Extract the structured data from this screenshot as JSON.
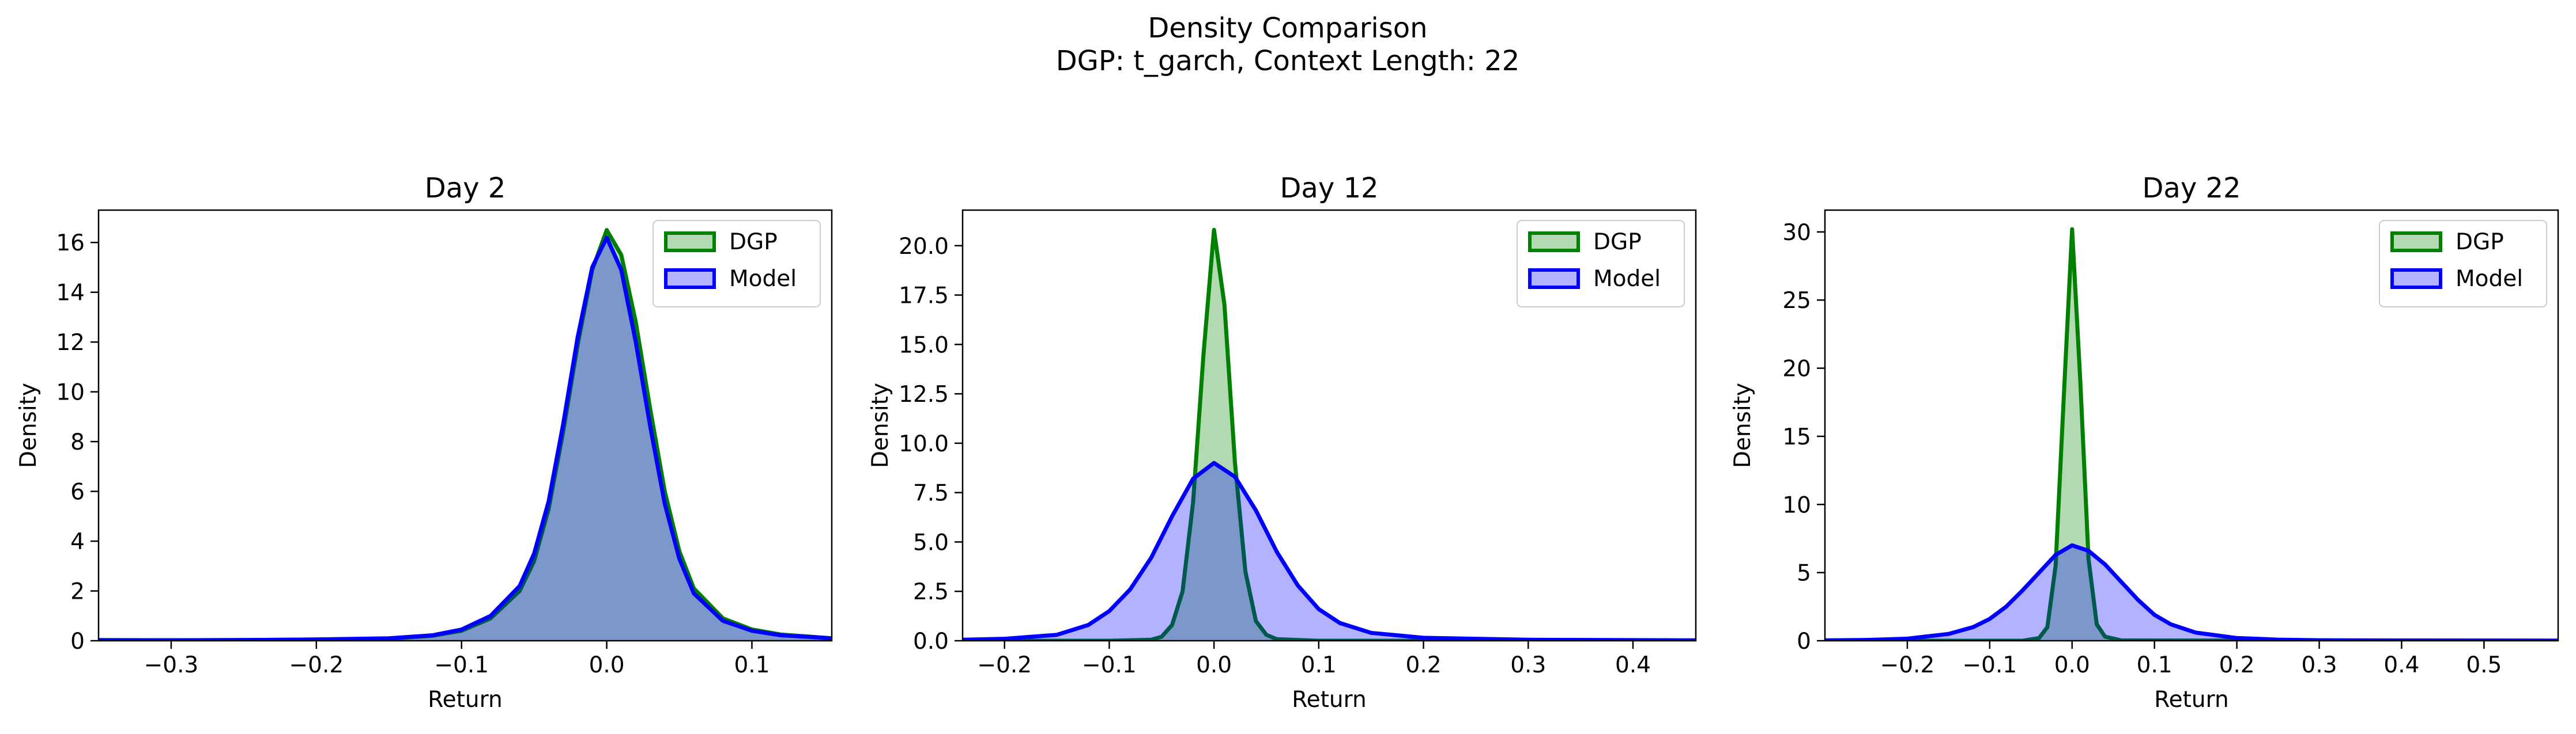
{
  "figure": {
    "title_line1": "Density Comparison",
    "title_line2": "DGP: t_garch, Context Length: 22"
  },
  "colors": {
    "dgp_line": "#008000",
    "dgp_fill": "#008000",
    "model_line": "#0000ff",
    "model_fill": "#0000ff"
  },
  "chart_data": [
    {
      "type": "area",
      "title": "Day 2",
      "xlabel": "Return",
      "ylabel": "Density",
      "xlim": [
        -0.35,
        0.155
      ],
      "ylim": [
        0,
        17.3
      ],
      "xticks": [
        -0.3,
        -0.2,
        -0.1,
        0.0,
        0.1
      ],
      "xtick_labels": [
        "−0.3",
        "−0.2",
        "−0.1",
        "0.0",
        "0.1"
      ],
      "yticks": [
        0,
        2,
        4,
        6,
        8,
        10,
        12,
        14,
        16
      ],
      "ytick_labels": [
        "0",
        "2",
        "4",
        "6",
        "8",
        "10",
        "12",
        "14",
        "16"
      ],
      "legend": {
        "position": "top-right",
        "entries": [
          "DGP",
          "Model"
        ]
      },
      "series": [
        {
          "name": "DGP",
          "x": [
            -0.35,
            -0.3,
            -0.25,
            -0.2,
            -0.15,
            -0.12,
            -0.1,
            -0.08,
            -0.06,
            -0.05,
            -0.04,
            -0.03,
            -0.02,
            -0.01,
            0.0,
            0.01,
            0.02,
            0.03,
            0.04,
            0.05,
            0.06,
            0.08,
            0.1,
            0.12,
            0.155
          ],
          "y": [
            0.03,
            0.02,
            0.03,
            0.05,
            0.08,
            0.2,
            0.4,
            0.9,
            2.0,
            3.2,
            5.3,
            8.4,
            11.9,
            14.9,
            16.5,
            15.5,
            12.8,
            9.3,
            6.0,
            3.6,
            2.1,
            0.9,
            0.45,
            0.25,
            0.1
          ]
        },
        {
          "name": "Model",
          "x": [
            -0.35,
            -0.3,
            -0.25,
            -0.2,
            -0.15,
            -0.12,
            -0.1,
            -0.08,
            -0.06,
            -0.05,
            -0.04,
            -0.03,
            -0.02,
            -0.01,
            0.0,
            0.01,
            0.02,
            0.03,
            0.04,
            0.05,
            0.06,
            0.08,
            0.1,
            0.12,
            0.155
          ],
          "y": [
            0.02,
            0.02,
            0.03,
            0.05,
            0.1,
            0.22,
            0.45,
            1.0,
            2.2,
            3.5,
            5.6,
            8.7,
            12.2,
            15.0,
            16.2,
            14.9,
            12.0,
            8.6,
            5.5,
            3.3,
            1.9,
            0.8,
            0.4,
            0.22,
            0.1
          ]
        }
      ]
    },
    {
      "type": "area",
      "title": "Day 12",
      "xlabel": "Return",
      "ylabel": "Density",
      "xlim": [
        -0.24,
        0.46
      ],
      "ylim": [
        0,
        21.8
      ],
      "xticks": [
        -0.2,
        -0.1,
        0.0,
        0.1,
        0.2,
        0.3,
        0.4
      ],
      "xtick_labels": [
        "−0.2",
        "−0.1",
        "0.0",
        "0.1",
        "0.2",
        "0.3",
        "0.4"
      ],
      "yticks": [
        0,
        2.5,
        5,
        7.5,
        10,
        12.5,
        15,
        17.5,
        20
      ],
      "ytick_labels": [
        "0.0",
        "2.5",
        "5.0",
        "7.5",
        "10.0",
        "12.5",
        "15.0",
        "17.5",
        "20.0"
      ],
      "legend": {
        "position": "top-right",
        "entries": [
          "DGP",
          "Model"
        ]
      },
      "series": [
        {
          "name": "DGP",
          "x": [
            -0.24,
            -0.1,
            -0.06,
            -0.05,
            -0.04,
            -0.03,
            -0.02,
            -0.01,
            0.0,
            0.01,
            0.02,
            0.03,
            0.04,
            0.05,
            0.06,
            0.1,
            0.2,
            0.46
          ],
          "y": [
            0,
            0,
            0.05,
            0.2,
            0.8,
            2.5,
            7.0,
            14.5,
            20.8,
            17.0,
            9.0,
            3.5,
            1.0,
            0.3,
            0.08,
            0,
            0,
            0
          ]
        },
        {
          "name": "Model",
          "x": [
            -0.24,
            -0.2,
            -0.15,
            -0.12,
            -0.1,
            -0.08,
            -0.06,
            -0.04,
            -0.02,
            0.0,
            0.02,
            0.04,
            0.06,
            0.08,
            0.1,
            0.12,
            0.15,
            0.2,
            0.3,
            0.46
          ],
          "y": [
            0.05,
            0.1,
            0.3,
            0.8,
            1.5,
            2.6,
            4.2,
            6.3,
            8.2,
            9.0,
            8.3,
            6.6,
            4.5,
            2.8,
            1.6,
            0.9,
            0.4,
            0.15,
            0.05,
            0.02
          ]
        }
      ]
    },
    {
      "type": "area",
      "title": "Day 22",
      "xlabel": "Return",
      "ylabel": "Density",
      "xlim": [
        -0.3,
        0.59
      ],
      "ylim": [
        0,
        31.6
      ],
      "xticks": [
        -0.2,
        -0.1,
        0.0,
        0.1,
        0.2,
        0.3,
        0.4,
        0.5
      ],
      "xtick_labels": [
        "−0.2",
        "−0.1",
        "0.0",
        "0.1",
        "0.2",
        "0.3",
        "0.4",
        "0.5"
      ],
      "yticks": [
        0,
        5,
        10,
        15,
        20,
        25,
        30
      ],
      "ytick_labels": [
        "0",
        "5",
        "10",
        "15",
        "20",
        "25",
        "30"
      ],
      "legend": {
        "position": "top-right",
        "entries": [
          "DGP",
          "Model"
        ]
      },
      "series": [
        {
          "name": "DGP",
          "x": [
            -0.3,
            -0.06,
            -0.04,
            -0.03,
            -0.02,
            -0.01,
            0.0,
            0.01,
            0.02,
            0.03,
            0.04,
            0.06,
            0.59
          ],
          "y": [
            0,
            0,
            0.2,
            1.0,
            5.5,
            18.0,
            30.2,
            19.0,
            6.0,
            1.2,
            0.3,
            0.02,
            0
          ]
        },
        {
          "name": "Model",
          "x": [
            -0.3,
            -0.25,
            -0.2,
            -0.15,
            -0.12,
            -0.1,
            -0.08,
            -0.06,
            -0.04,
            -0.02,
            0.0,
            0.02,
            0.04,
            0.06,
            0.08,
            0.1,
            0.12,
            0.15,
            0.2,
            0.25,
            0.3,
            0.4,
            0.59
          ],
          "y": [
            0.03,
            0.06,
            0.15,
            0.5,
            1.0,
            1.6,
            2.5,
            3.7,
            5.0,
            6.3,
            7.0,
            6.6,
            5.6,
            4.3,
            3.0,
            1.9,
            1.2,
            0.6,
            0.2,
            0.08,
            0.04,
            0.02,
            0.01
          ]
        }
      ]
    }
  ]
}
